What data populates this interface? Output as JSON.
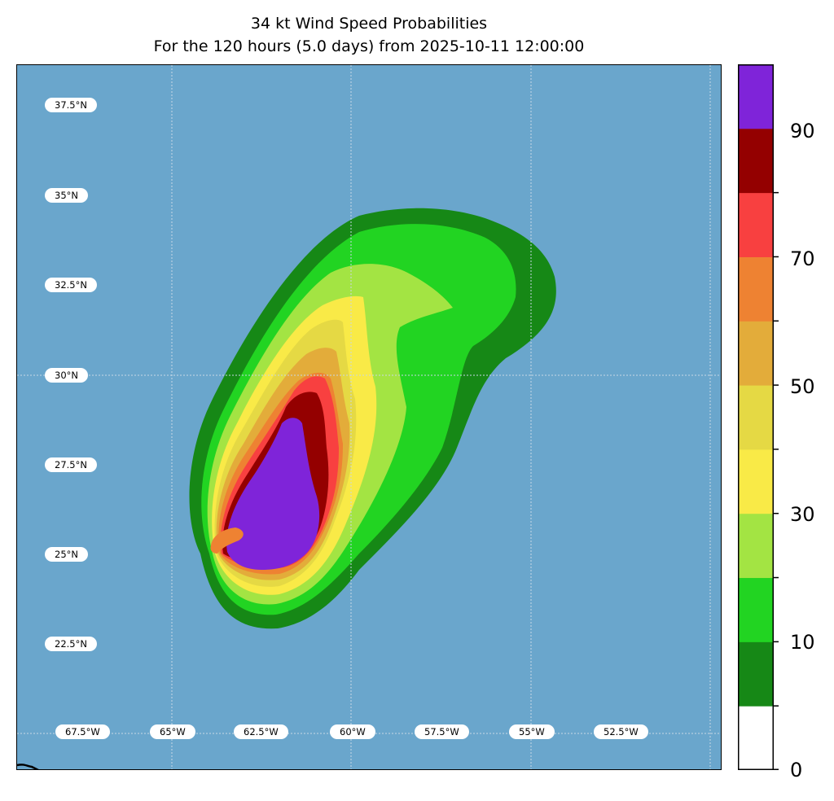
{
  "title": {
    "line1": "34 kt Wind Speed Probabilities",
    "line2": "For the 120 hours (5.0 days) from 2025-10-11 12:00:00"
  },
  "map": {
    "ocean_color": "#6aa6cc",
    "grid_color": "#c8d8e6",
    "lat_labels": [
      "37.5°N",
      "35°N",
      "32.5°N",
      "30°N",
      "27.5°N",
      "25°N",
      "22.5°N"
    ],
    "lon_labels": [
      "67.5°W",
      "65°W",
      "62.5°W",
      "60°W",
      "57.5°W",
      "55°W",
      "52.5°W"
    ]
  },
  "colorbar": {
    "levels": [
      0,
      10,
      20,
      30,
      40,
      50,
      60,
      70,
      80,
      90,
      100
    ],
    "colors": [
      "#ffffff",
      "#168816",
      "#22d422",
      "#a3e443",
      "#f9ea47",
      "#e5d944",
      "#e3ac3a",
      "#ee8232",
      "#f84040",
      "#940000",
      "#7f24d9"
    ],
    "tick_labels": [
      "0",
      "10",
      "30",
      "50",
      "70",
      "90"
    ]
  }
}
